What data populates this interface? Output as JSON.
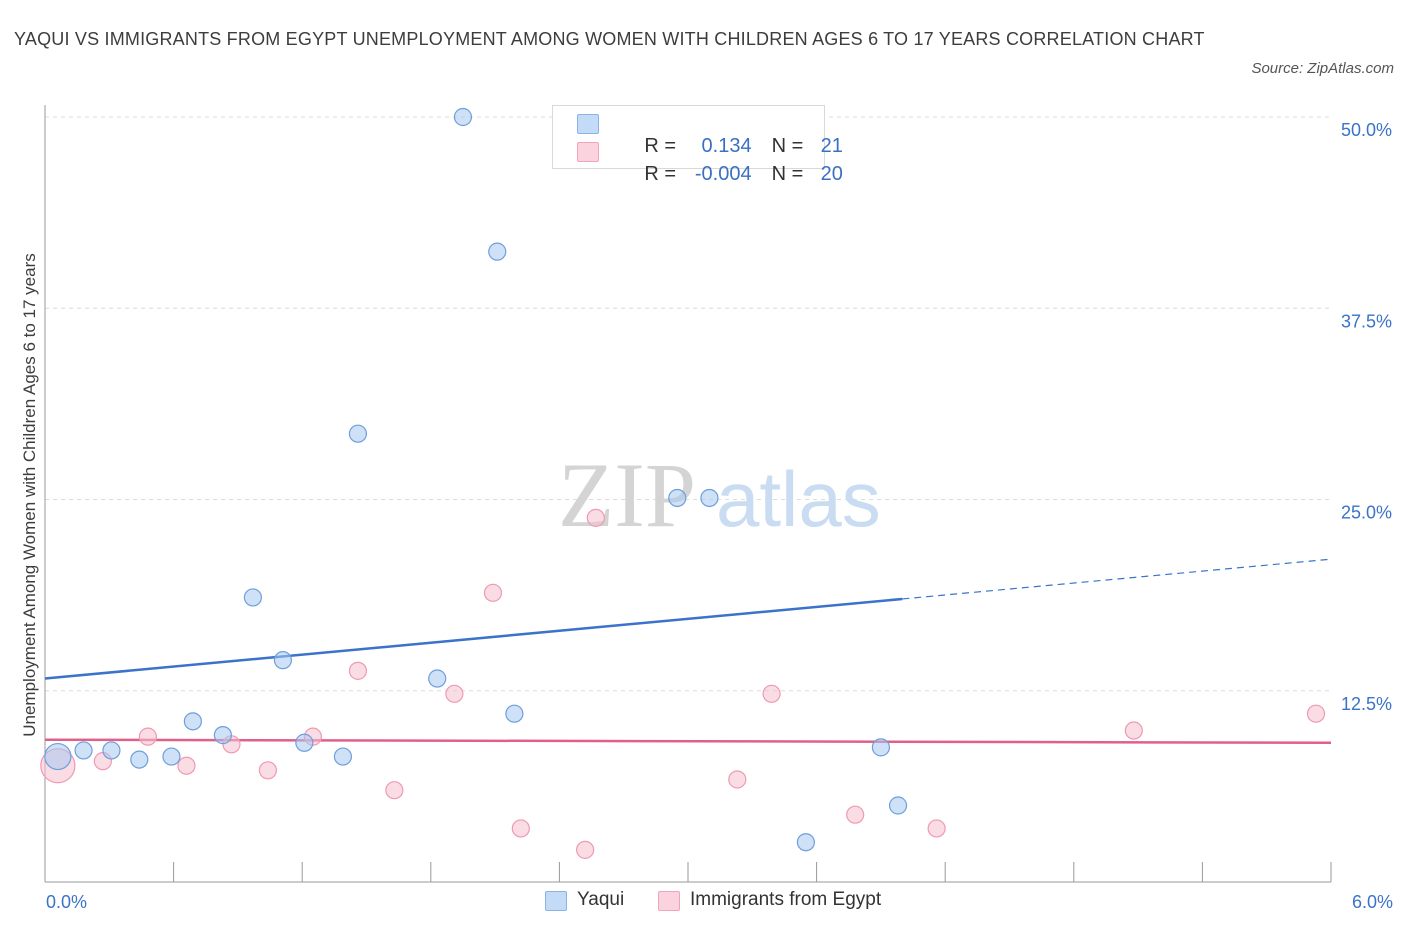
{
  "title": "YAQUI VS IMMIGRANTS FROM EGYPT UNEMPLOYMENT AMONG WOMEN WITH CHILDREN AGES 6 TO 17 YEARS CORRELATION CHART",
  "source": "Source: ZipAtlas.com",
  "watermark": {
    "zip": "ZIP",
    "atlas": "atlas"
  },
  "legend": {
    "rows": [
      {
        "text": "R =   0.134   N =  21",
        "r_label": "R = ",
        "r_value": "0.134",
        "n_label": "N = ",
        "n_value": "21",
        "color": "#a8c8f0"
      },
      {
        "text": "R = -0.004   N = 20",
        "r_label": "R = ",
        "r_value": "-0.004",
        "n_label": "N = ",
        "n_value": "20",
        "color": "#f6c0d0"
      }
    ]
  },
  "bottom_legend": {
    "series1": "Yaqui",
    "series2": "Immigrants from Egypt"
  },
  "chart_data": {
    "type": "scatter",
    "title": "YAQUI VS IMMIGRANTS FROM EGYPT UNEMPLOYMENT AMONG WOMEN WITH CHILDREN AGES 6 TO 17 YEARS CORRELATION CHART",
    "xlabel": "",
    "ylabel": "Unemployment Among Women with Children Ages 6 to 17 years",
    "xlim": [
      0,
      6
    ],
    "ylim": [
      0,
      50
    ],
    "x_tick_labels": [
      "0.0%",
      "6.0%"
    ],
    "y_ticks": [
      12.5,
      25.0,
      37.5,
      50.0
    ],
    "y_tick_labels": [
      "12.5%",
      "25.0%",
      "37.5%",
      "50.0%"
    ],
    "grid": true,
    "legend_position": "top-center",
    "series": [
      {
        "name": "Yaqui",
        "color": "#a8c8f0",
        "stroke": "#6d9fdc",
        "line_color": "#3a73c9",
        "points": [
          [
            0.06,
            8.2
          ],
          [
            0.18,
            8.6
          ],
          [
            0.31,
            8.6
          ],
          [
            0.44,
            8.0
          ],
          [
            0.59,
            8.2
          ],
          [
            0.69,
            10.5
          ],
          [
            0.83,
            9.6
          ],
          [
            0.97,
            18.6
          ],
          [
            1.11,
            14.5
          ],
          [
            1.21,
            9.1
          ],
          [
            1.39,
            8.2
          ],
          [
            1.46,
            29.3
          ],
          [
            1.83,
            13.3
          ],
          [
            1.95,
            50.0
          ],
          [
            2.11,
            41.2
          ],
          [
            2.19,
            11.0
          ],
          [
            2.95,
            25.1
          ],
          [
            3.1,
            25.1
          ],
          [
            3.55,
            2.6
          ],
          [
            3.9,
            8.8
          ],
          [
            3.98,
            5.0
          ]
        ],
        "trend": {
          "x": [
            0,
            4.0
          ],
          "y": [
            13.3,
            18.5
          ],
          "dashed_to": [
            6.0,
            21.1
          ]
        }
      },
      {
        "name": "Immigrants from Egypt",
        "color": "#f6c0d0",
        "stroke": "#ee9ab2",
        "line_color": "#e0608a",
        "points": [
          [
            0.06,
            7.6
          ],
          [
            0.27,
            7.9
          ],
          [
            0.48,
            9.5
          ],
          [
            0.66,
            7.6
          ],
          [
            0.87,
            9.0
          ],
          [
            1.04,
            7.3
          ],
          [
            1.25,
            9.5
          ],
          [
            1.46,
            13.8
          ],
          [
            1.63,
            6.0
          ],
          [
            1.91,
            12.3
          ],
          [
            2.09,
            18.9
          ],
          [
            2.22,
            3.5
          ],
          [
            2.52,
            2.1
          ],
          [
            2.57,
            23.8
          ],
          [
            3.23,
            6.7
          ],
          [
            3.39,
            12.3
          ],
          [
            3.78,
            4.4
          ],
          [
            4.16,
            3.5
          ],
          [
            5.08,
            9.9
          ],
          [
            5.93,
            11.0
          ]
        ],
        "trend": {
          "x": [
            0,
            6.0
          ],
          "y": [
            9.3,
            9.1
          ]
        }
      }
    ]
  }
}
